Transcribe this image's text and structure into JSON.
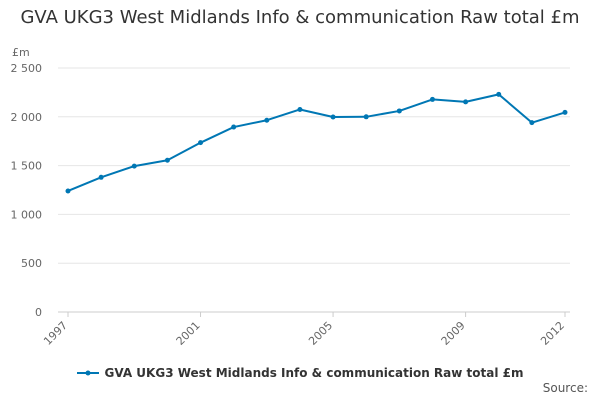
{
  "title": "GVA UKG3 West Midlands Info & communication Raw total £m",
  "source_label": "Source:",
  "chart_data": {
    "type": "line",
    "unit_label": "£m",
    "x": [
      1997,
      1998,
      1999,
      2000,
      2001,
      2002,
      2003,
      2004,
      2005,
      2006,
      2007,
      2008,
      2009,
      2010,
      2011,
      2012
    ],
    "series": [
      {
        "name": "GVA UKG3 West Midlands Info & communication Raw total £m",
        "values": [
          1240,
          1380,
          1495,
          1555,
          1735,
          1895,
          1965,
          2075,
          1998,
          2000,
          2060,
          2178,
          2153,
          2230,
          1940,
          2045
        ],
        "color": "#0077b4"
      }
    ],
    "xticks": [
      "1997",
      "2001",
      "2005",
      "2009",
      "2012"
    ],
    "yticks": [
      "0",
      "500",
      "1 000",
      "1 500",
      "2 000",
      "2 500"
    ],
    "ylim": [
      0,
      2500
    ],
    "grid": "horizontal",
    "legend_position": "bottom"
  }
}
